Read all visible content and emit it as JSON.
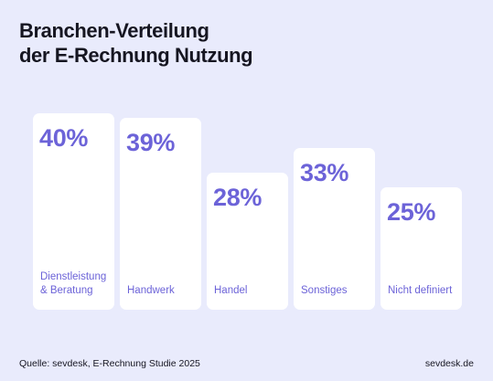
{
  "title_lines": [
    "Branchen-Verteilung",
    "der E-Rechnung Nutzung"
  ],
  "chart_data": {
    "type": "bar",
    "categories": [
      "Dienstleistung\n& Beratung",
      "Handwerk",
      "Handel",
      "Sonstiges",
      "Nicht definiert"
    ],
    "values": [
      40,
      39,
      28,
      33,
      25
    ],
    "value_labels": [
      "40%",
      "39%",
      "28%",
      "33%",
      "25%"
    ],
    "title": "Branchen-Verteilung der E-Rechnung Nutzung",
    "xlabel": "",
    "ylabel": "",
    "ylim": [
      0,
      40
    ],
    "grid": false,
    "colors": {
      "bar": "#ffffff",
      "text": "#6c63d8",
      "background": "#e9ebfc"
    }
  },
  "footer": {
    "source": "Quelle: sevdesk, E-Rechnung Studie 2025",
    "brand": "sevdesk.de"
  }
}
